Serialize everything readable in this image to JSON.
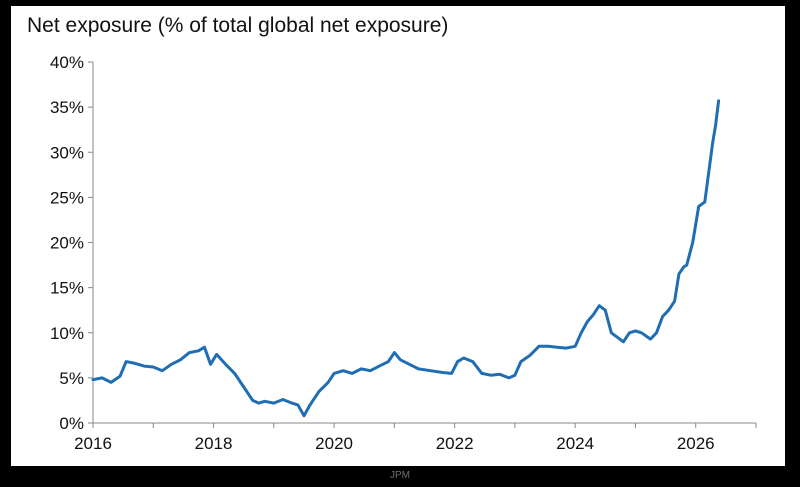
{
  "source_label": "JPM",
  "chart_data": {
    "type": "line",
    "title": "Net exposure (% of total global net exposure)",
    "xlabel": "",
    "ylabel": "",
    "xlim": [
      2016,
      2027
    ],
    "ylim": [
      0,
      40
    ],
    "x_ticks": [
      2016,
      2018,
      2020,
      2022,
      2024,
      2026
    ],
    "x_tick_labels": [
      "2016",
      "2018",
      "2020",
      "2022",
      "2024",
      "2026"
    ],
    "y_ticks": [
      0,
      5,
      10,
      15,
      20,
      25,
      30,
      35,
      40
    ],
    "y_tick_labels": [
      "0%",
      "5%",
      "10%",
      "15%",
      "20%",
      "25%",
      "30%",
      "35%",
      "40%"
    ],
    "grid": false,
    "legend": "none",
    "line_color": "#1f6db3",
    "series": [
      {
        "x": [
          2016.0,
          2016.15,
          2016.3,
          2016.45,
          2016.55,
          2016.7,
          2016.85,
          2017.0,
          2017.15,
          2017.3,
          2017.45,
          2017.6,
          2017.75,
          2017.85,
          2017.95,
          2018.05,
          2018.2,
          2018.35,
          2018.5,
          2018.65,
          2018.75,
          2018.85,
          2019.0,
          2019.15,
          2019.3,
          2019.4,
          2019.5,
          2019.6,
          2019.75,
          2019.9,
          2020.0,
          2020.15,
          2020.3,
          2020.45,
          2020.6,
          2020.75,
          2020.9,
          2021.0,
          2021.1,
          2021.25,
          2021.4,
          2021.6,
          2021.8,
          2021.95,
          2022.05,
          2022.15,
          2022.3,
          2022.45,
          2022.6,
          2022.75,
          2022.9,
          2023.0,
          2023.1,
          2023.25,
          2023.4,
          2023.55,
          2023.7,
          2023.85,
          2024.0,
          2024.1,
          2024.2,
          2024.3,
          2024.4,
          2024.5,
          2024.6,
          2024.7,
          2024.8,
          2024.9,
          2025.0,
          2025.1,
          2025.25,
          2025.35,
          2025.45,
          2025.55,
          2025.65,
          2025.72,
          2025.8,
          2025.85,
          2025.95,
          2026.05,
          2026.15,
          2026.22,
          2026.28,
          2026.33,
          2026.38
        ],
        "values": [
          4.8,
          5.0,
          4.5,
          5.2,
          6.8,
          6.6,
          6.3,
          6.2,
          5.8,
          6.5,
          7.0,
          7.8,
          8.0,
          8.4,
          6.5,
          7.6,
          6.5,
          5.5,
          4.0,
          2.5,
          2.2,
          2.4,
          2.2,
          2.6,
          2.2,
          2.0,
          0.8,
          2.0,
          3.5,
          4.5,
          5.5,
          5.8,
          5.5,
          6.0,
          5.8,
          6.3,
          6.8,
          7.8,
          7.0,
          6.5,
          6.0,
          5.8,
          5.6,
          5.5,
          6.8,
          7.2,
          6.8,
          5.5,
          5.3,
          5.4,
          5.0,
          5.3,
          6.8,
          7.5,
          8.5,
          8.5,
          8.4,
          8.3,
          8.5,
          10.0,
          11.2,
          12.0,
          13.0,
          12.5,
          10.0,
          9.5,
          9.0,
          10.0,
          10.2,
          10.0,
          9.3,
          10.0,
          11.8,
          12.5,
          13.5,
          16.5,
          17.3,
          17.5,
          20.0,
          24.0,
          24.5,
          28.0,
          31.0,
          33.0,
          35.7
        ]
      }
    ]
  }
}
